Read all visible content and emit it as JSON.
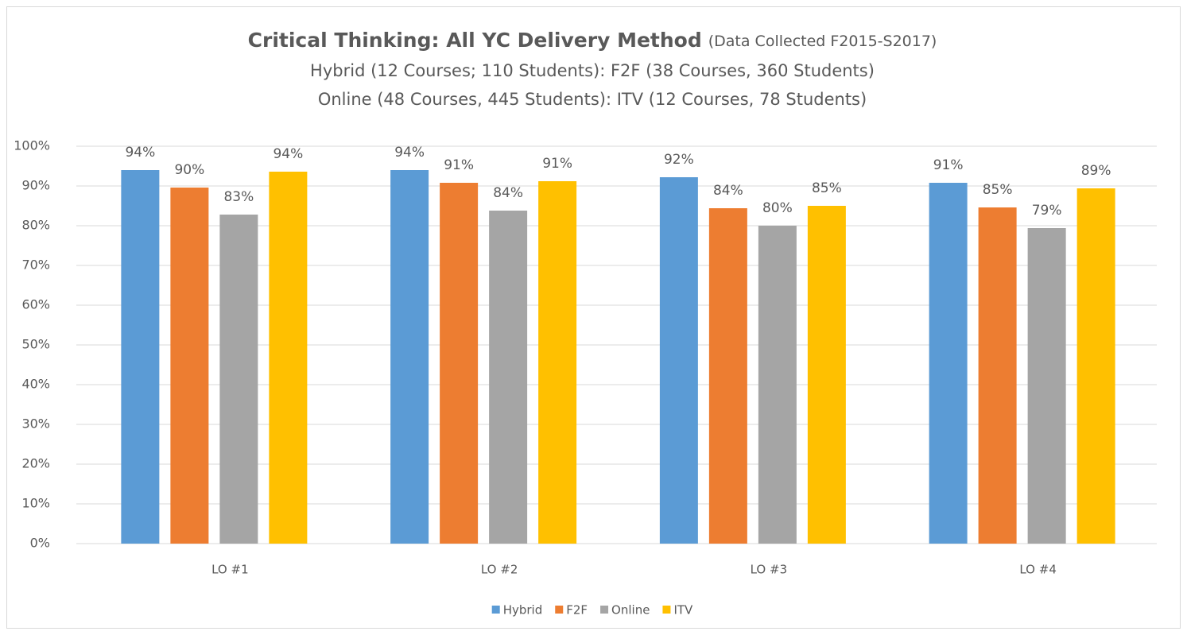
{
  "chart_data": {
    "type": "bar",
    "title": "Critical Thinking:  All YC Delivery Method",
    "title_note": "(Data Collected F2015-S2017)",
    "subtitle": [
      "Hybrid (12 Courses; 110 Students):  F2F (38 Courses, 360 Students)",
      "Online (48 Courses, 445 Students):  ITV (12 Courses, 78 Students)"
    ],
    "categories": [
      "LO #1",
      "LO #2",
      "LO #3",
      "LO #4"
    ],
    "series": [
      {
        "name": "Hybrid",
        "color": "#5b9bd5",
        "values": [
          94.0,
          94.0,
          92.2,
          90.8
        ],
        "value_labels": [
          "94%",
          "94%",
          "92%",
          "91%"
        ]
      },
      {
        "name": "F2F",
        "color": "#ed7d31",
        "values": [
          89.6,
          90.8,
          84.4,
          84.6
        ],
        "value_labels": [
          "90%",
          "91%",
          "84%",
          "85%"
        ]
      },
      {
        "name": "Online",
        "color": "#a5a5a5",
        "values": [
          82.8,
          83.8,
          80.0,
          79.4
        ],
        "value_labels": [
          "83%",
          "84%",
          "80%",
          "79%"
        ]
      },
      {
        "name": "ITV",
        "color": "#ffc000",
        "values": [
          93.6,
          91.2,
          85.0,
          89.4
        ],
        "value_labels": [
          "94%",
          "91%",
          "85%",
          "89%"
        ]
      }
    ],
    "ylim": [
      0,
      100
    ],
    "yticks": [
      {
        "value": 0,
        "label": "0%"
      },
      {
        "value": 10,
        "label": "10%"
      },
      {
        "value": 20,
        "label": "20%"
      },
      {
        "value": 30,
        "label": "30%"
      },
      {
        "value": 40,
        "label": "40%"
      },
      {
        "value": 50,
        "label": "50%"
      },
      {
        "value": 60,
        "label": "60%"
      },
      {
        "value": 70,
        "label": "70%"
      },
      {
        "value": 80,
        "label": "80%"
      },
      {
        "value": 90,
        "label": "90%"
      },
      {
        "value": 100,
        "label": "100%"
      }
    ],
    "grid": true,
    "legend": "bottom"
  }
}
